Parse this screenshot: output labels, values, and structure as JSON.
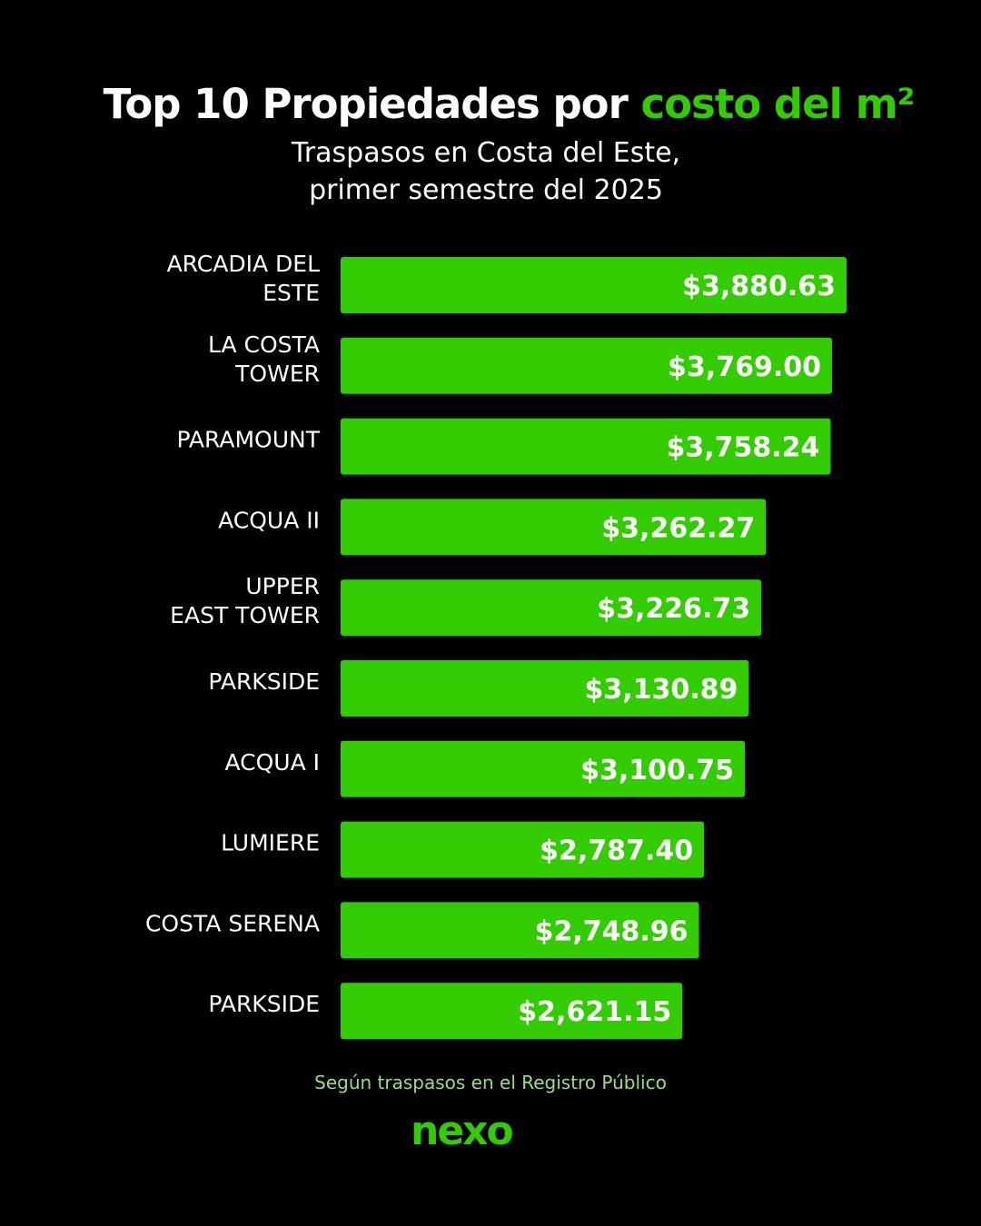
{
  "header": {
    "title_main": "Top 10 Propiedades por",
    "title_accent": "costo del m²",
    "subtitle_line1": "Traspasos en Costa del Este,",
    "subtitle_line2": "primer semestre del 2025"
  },
  "chart_data": {
    "type": "bar",
    "orientation": "horizontal",
    "categories": [
      [
        "ARCADIA DEL",
        "ESTE"
      ],
      [
        "LA COSTA",
        "TOWER"
      ],
      [
        "PARAMOUNT"
      ],
      [
        "ACQUA II"
      ],
      [
        "UPPER",
        "EAST TOWER"
      ],
      [
        "PARKSIDE"
      ],
      [
        "ACQUA I"
      ],
      [
        "LUMIERE"
      ],
      [
        "COSTA SERENA"
      ],
      [
        "PARKSIDE"
      ]
    ],
    "values": [
      3880.63,
      3769.0,
      3758.24,
      3262.27,
      3226.73,
      3130.89,
      3100.75,
      2787.4,
      2748.96,
      2621.15
    ],
    "value_labels": [
      "$3,880.63",
      "$3,769.00",
      "$3,758.24",
      "$3,262.27",
      "$3,226.73",
      "$3,130.89",
      "$3,100.75",
      "$2,787.40",
      "$2,748.96",
      "$2,621.15"
    ],
    "xlim": [
      0,
      3880.63
    ],
    "grid": false,
    "bar_color": "#33cc00",
    "label_color": "#ffffff"
  },
  "footer": {
    "note": "Según traspasos en el Registro Público",
    "logo_text": "nexo",
    "logo_color": "#33cc00"
  }
}
